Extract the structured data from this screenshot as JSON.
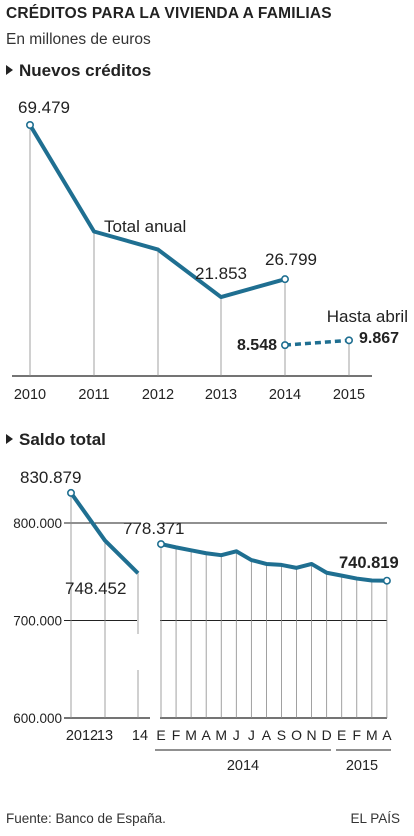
{
  "header": {
    "title": "CRÉDITOS PARA LA VIVIENDA A FAMILIAS",
    "subtitle": "En millones de euros"
  },
  "footer": {
    "source": "Fuente: Banco de España.",
    "brand": "EL PAÍS"
  },
  "colors": {
    "line": "#1f6f91",
    "grid": "#8a8a8a",
    "axis": "#222222"
  },
  "chart_data": [
    {
      "type": "line",
      "title": "Nuevos créditos",
      "categories": [
        "2010",
        "2011",
        "2012",
        "2013",
        "2014",
        "2015"
      ],
      "series": [
        {
          "name": "Total anual",
          "values": [
            69479,
            40000,
            35000,
            21853,
            26799,
            null
          ],
          "style": "solid"
        },
        {
          "name": "Hasta abril",
          "values": [
            null,
            null,
            null,
            null,
            8548,
            9867
          ],
          "style": "dashed"
        }
      ],
      "data_labels": [
        {
          "category": "2010",
          "text": "69.479"
        },
        {
          "category": "2013",
          "text": "21.853"
        },
        {
          "category": "2014",
          "text": "26.799"
        },
        {
          "category": "2014",
          "text": "8.548",
          "bold": true
        },
        {
          "category": "2015",
          "text": "9.867",
          "bold": true
        }
      ],
      "ylim": [
        0,
        72000
      ],
      "grid": "vertical"
    },
    {
      "type": "line",
      "title": "Saldo total",
      "yticks": [
        "800.000",
        "700.000",
        "600.000"
      ],
      "ytick_values": [
        800000,
        700000,
        600000
      ],
      "ylim": [
        600000,
        840000
      ],
      "annual": {
        "categories": [
          "2012",
          "13",
          "14"
        ],
        "values": [
          830879,
          782000,
          748452
        ]
      },
      "monthly": {
        "month_labels": [
          "E",
          "F",
          "M",
          "A",
          "M",
          "J",
          "J",
          "A",
          "S",
          "O",
          "N",
          "D",
          "E",
          "F",
          "M",
          "A"
        ],
        "year_labels": [
          "2014",
          "2015"
        ],
        "values": [
          778371,
          775000,
          772000,
          769000,
          767000,
          771000,
          762000,
          758000,
          757000,
          754000,
          758000,
          749000,
          746000,
          743000,
          741000,
          740819
        ]
      },
      "data_labels": [
        {
          "text": "830.879"
        },
        {
          "text": "748.452"
        },
        {
          "text": "778.371"
        },
        {
          "text": "740.819",
          "bold": true
        }
      ],
      "grid": "vertical"
    }
  ]
}
